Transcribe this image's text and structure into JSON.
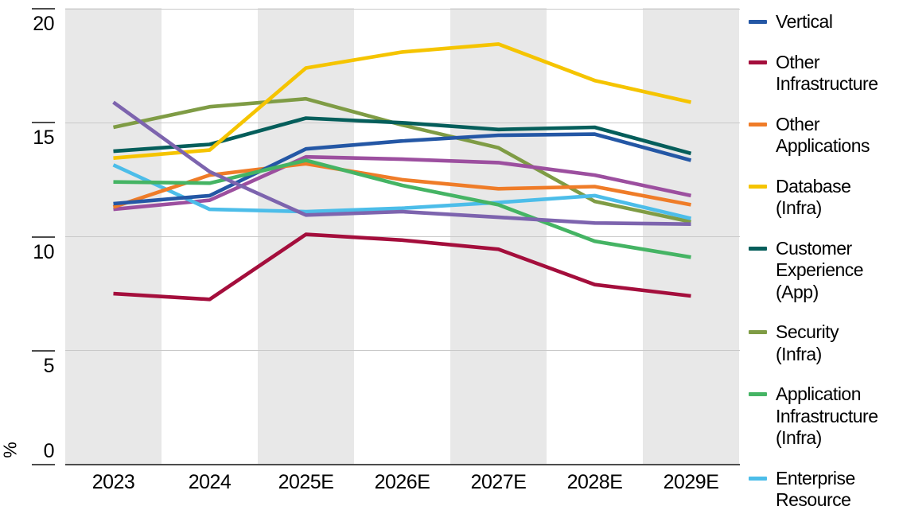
{
  "chart_data": {
    "type": "line",
    "ylabel": "%",
    "x_categories": [
      "2023",
      "2024",
      "2025E",
      "2026E",
      "2027E",
      "2028E",
      "2029E"
    ],
    "y_ticks": [
      0,
      5,
      10,
      15,
      20
    ],
    "ylim": [
      0,
      20.3
    ],
    "grid": "horizontal",
    "shaded_columns": [
      0,
      2,
      4,
      6
    ],
    "legend_position": "right",
    "series": [
      {
        "id": "vertical",
        "name": "Vertical",
        "color": "#2457a5",
        "values": [
          11.45,
          11.8,
          13.85,
          14.2,
          14.45,
          14.5,
          13.35
        ]
      },
      {
        "id": "other-infrastructure",
        "name": "Other Infrastructure",
        "color": "#a40e3c",
        "values": [
          7.5,
          7.25,
          10.1,
          9.85,
          9.45,
          7.9,
          7.4
        ]
      },
      {
        "id": "other-applications",
        "name": "Other Applications",
        "color": "#ef7c28",
        "values": [
          11.3,
          12.7,
          13.2,
          12.5,
          12.1,
          12.2,
          11.4
        ]
      },
      {
        "id": "database-infra",
        "name": "Database (Infra)",
        "color": "#f5c400",
        "values": [
          13.45,
          13.8,
          17.4,
          18.1,
          18.45,
          16.85,
          15.9
        ]
      },
      {
        "id": "customer-experience-app",
        "name": "Customer Experience (App)",
        "color": "#055e5b",
        "values": [
          13.75,
          14.05,
          15.2,
          15.0,
          14.7,
          14.8,
          13.65
        ]
      },
      {
        "id": "security-infra",
        "name": "Security (Infra)",
        "color": "#7f9c45",
        "values": [
          14.8,
          15.7,
          16.05,
          14.9,
          13.9,
          11.55,
          10.65
        ]
      },
      {
        "id": "application-infrastructure-infra",
        "name": "Application Infrastructure (Infra)",
        "color": "#45b464",
        "values": [
          12.4,
          12.35,
          13.35,
          12.25,
          11.4,
          9.8,
          9.1
        ]
      },
      {
        "id": "enterprise-resource",
        "name": "Enterprise Resource",
        "color": "#4cbde9",
        "values": [
          13.15,
          11.2,
          11.1,
          11.25,
          11.5,
          11.8,
          10.8
        ]
      },
      {
        "id": "unlabeled-purple",
        "name": null,
        "color": "#7d64ae",
        "values": [
          15.9,
          12.85,
          10.95,
          11.1,
          10.85,
          10.6,
          10.55
        ]
      },
      {
        "id": "unlabeled-plum",
        "name": null,
        "color": "#9c4f9f",
        "values": [
          11.2,
          11.6,
          13.5,
          13.4,
          13.25,
          12.7,
          11.8
        ]
      }
    ],
    "legend": {
      "entries": [
        {
          "id": "vertical",
          "color": "#2457a5",
          "lines": [
            "Vertical"
          ]
        },
        {
          "id": "other-infrastructure",
          "color": "#a40e3c",
          "lines": [
            "Other",
            "Infrastructure"
          ]
        },
        {
          "id": "other-applications",
          "color": "#ef7c28",
          "lines": [
            "Other",
            "Applications"
          ]
        },
        {
          "id": "database-infra",
          "color": "#f5c400",
          "lines": [
            "Database",
            "(Infra)"
          ]
        },
        {
          "id": "customer-experience-app",
          "color": "#055e5b",
          "lines": [
            "Customer",
            "Experience",
            "(App)"
          ]
        },
        {
          "id": "security-infra",
          "color": "#7f9c45",
          "lines": [
            "Security",
            "(Infra)"
          ]
        },
        {
          "id": "application-infrastructure-infra",
          "color": "#45b464",
          "lines": [
            "Application",
            "Infrastructure",
            "(Infra)"
          ]
        },
        {
          "id": "enterprise-resource",
          "color": "#4cbde9",
          "lines": [
            "Enterprise",
            "Resource"
          ]
        }
      ]
    }
  }
}
